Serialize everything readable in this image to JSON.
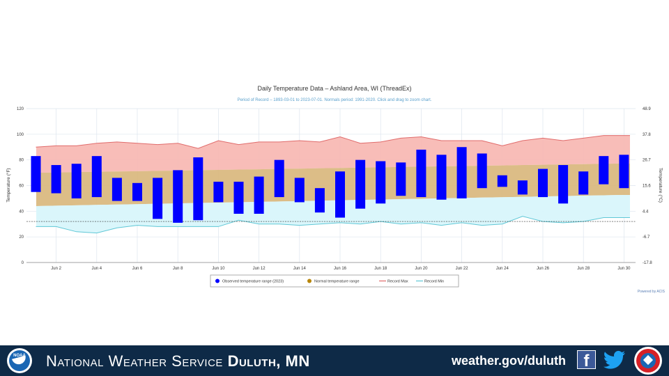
{
  "chart_data": {
    "type": "bar",
    "title": "Daily Temperature Data – Ashland Area, WI (ThreadEx)",
    "subtitle": "Period of Record – 1893-03-01 to 2023-07-01. Normals period: 1991-2020. Click and drag to zoom chart.",
    "ylabel": "Temperature (°F)",
    "y2label": "Temperature (°C)",
    "ylim": [
      0,
      120
    ],
    "y_ticks": [
      0,
      20,
      40,
      60,
      80,
      100,
      120
    ],
    "y2_ticks": [
      "-17.8",
      "-6.7",
      "4.4",
      "15.6",
      "26.7",
      "37.8",
      "48.9"
    ],
    "x_ticks": [
      "Jun 2",
      "Jun 4",
      "Jun 6",
      "Jun 8",
      "Jun 10",
      "Jun 12",
      "Jun 14",
      "Jun 16",
      "Jun 18",
      "Jun 20",
      "Jun 22",
      "Jun 24",
      "Jun 26",
      "Jun 28",
      "Jun 30"
    ],
    "days": [
      1,
      2,
      3,
      4,
      5,
      6,
      7,
      8,
      9,
      10,
      11,
      12,
      13,
      14,
      15,
      16,
      17,
      18,
      19,
      20,
      21,
      22,
      23,
      24,
      25,
      26,
      27,
      28,
      29,
      30
    ],
    "series": [
      {
        "name": "Observed temperature range (2023)",
        "color": "#0000ff",
        "low": [
          55,
          54,
          50,
          51,
          48,
          48,
          34,
          31,
          33,
          47,
          38,
          38,
          51,
          47,
          39,
          35,
          42,
          46,
          52,
          51,
          49,
          50,
          58,
          59,
          53,
          51,
          46,
          53,
          61,
          58
        ],
        "high": [
          83,
          76,
          77,
          83,
          66,
          62,
          66,
          72,
          82,
          63,
          63,
          67,
          80,
          66,
          58,
          71,
          80,
          79,
          78,
          88,
          84,
          90,
          85,
          68,
          64,
          73,
          76,
          71,
          83,
          84
        ]
      },
      {
        "name": "Normal temperature range",
        "color": "#b8860b",
        "low": [
          44,
          44.3,
          44.6,
          44.9,
          45.2,
          45.5,
          45.8,
          46.1,
          46.4,
          46.7,
          47,
          47.3,
          47.6,
          47.9,
          48.2,
          48.5,
          48.8,
          49.1,
          49.4,
          49.7,
          50,
          50.3,
          50.6,
          50.9,
          51.2,
          51.5,
          51.8,
          52.1,
          52.4,
          52.7
        ],
        "high": [
          70,
          70.2,
          70.5,
          70.7,
          71,
          71.2,
          71.5,
          71.7,
          72,
          72.2,
          72.5,
          72.7,
          73,
          73.2,
          73.5,
          73.7,
          74,
          74.2,
          74.5,
          74.7,
          75,
          75.2,
          75.5,
          75.7,
          76,
          76.2,
          76.5,
          76.7,
          77,
          77.2
        ]
      },
      {
        "name": "Record Max",
        "color": "#e06b6b",
        "values": [
          90,
          91,
          91,
          93,
          94,
          93,
          92,
          93,
          89,
          95,
          92,
          94,
          94,
          95,
          94,
          98,
          93,
          94,
          97,
          98,
          95,
          95,
          95,
          91,
          95,
          97,
          95,
          97,
          99,
          99
        ]
      },
      {
        "name": "Record Min",
        "color": "#5fc7d6",
        "values": [
          28,
          28,
          24,
          23,
          27,
          29,
          28,
          28,
          28,
          28,
          33,
          30,
          30,
          29,
          30,
          31,
          30,
          32,
          30,
          31,
          29,
          31,
          29,
          30,
          36,
          32,
          31,
          32,
          35,
          35
        ]
      }
    ],
    "credit": "Powered by ACIS",
    "grid": true,
    "legend_position": "bottom"
  },
  "footer": {
    "agency": "National Weather Service",
    "office": "Duluth, MN",
    "url": "weather.gov/duluth",
    "noaa_text": "NOAA"
  }
}
